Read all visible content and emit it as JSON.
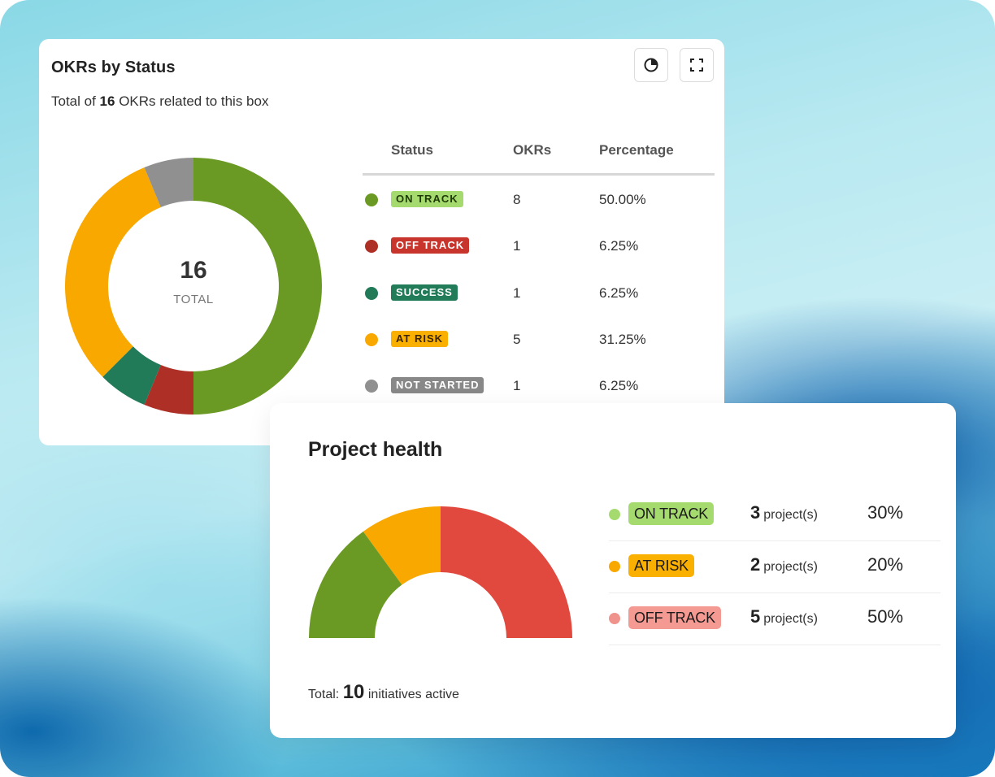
{
  "okr_card": {
    "title": "OKRs by Status",
    "subtitle_prefix": "Total of",
    "subtitle_count": "16",
    "subtitle_suffix": "OKRs related to this box",
    "chart_icon": "pie-chart-icon",
    "expand_icon": "fullscreen-icon",
    "center_value": "16",
    "center_label": "TOTAL",
    "columns": [
      "Status",
      "OKRs",
      "Percentage"
    ],
    "rows": [
      {
        "status": "ON TRACK",
        "okrs": "8",
        "percentage": "50.00%",
        "color": "#6a9a23",
        "badge_bg": "#a5db6e",
        "badge_text": "#1f3a06"
      },
      {
        "status": "OFF TRACK",
        "okrs": "1",
        "percentage": "6.25%",
        "color": "#ad2f26",
        "badge_bg": "#c8352c",
        "badge_text": "#ffffff"
      },
      {
        "status": "SUCCESS",
        "okrs": "1",
        "percentage": "6.25%",
        "color": "#217a58",
        "badge_bg": "#227b59",
        "badge_text": "#ffffff"
      },
      {
        "status": "AT RISK",
        "okrs": "5",
        "percentage": "31.25%",
        "color": "#f9a800",
        "badge_bg": "#fab000",
        "badge_text": "#3a2500"
      },
      {
        "status": "NOT STARTED",
        "okrs": "1",
        "percentage": "6.25%",
        "color": "#909090",
        "badge_bg": "#888888",
        "badge_text": "#ffffff"
      }
    ]
  },
  "chart_data": [
    {
      "type": "pie",
      "title": "OKRs by Status",
      "categories": [
        "ON TRACK",
        "OFF TRACK",
        "SUCCESS",
        "AT RISK",
        "NOT STARTED"
      ],
      "values": [
        8,
        1,
        1,
        5,
        1
      ],
      "colors": [
        "#6a9a23",
        "#ad2f26",
        "#217a58",
        "#f9a800",
        "#909090"
      ]
    },
    {
      "type": "pie",
      "title": "Project health",
      "categories": [
        "OFF TRACK",
        "AT RISK",
        "ON TRACK"
      ],
      "values": [
        5,
        2,
        3
      ],
      "colors": [
        "#e2493e",
        "#f9a800",
        "#6a9a23"
      ]
    }
  ],
  "health_card": {
    "title": "Project health",
    "rows": [
      {
        "status": "ON TRACK",
        "count": "3",
        "unit": "project(s)",
        "percent": "30%",
        "dot": "#a5db6e",
        "badge_bg": "#a5db6e"
      },
      {
        "status": "AT RISK",
        "count": "2",
        "unit": "project(s)",
        "percent": "20%",
        "dot": "#f9a800",
        "badge_bg": "#fab000"
      },
      {
        "status": "OFF TRACK",
        "count": "5",
        "unit": "project(s)",
        "percent": "50%",
        "dot": "#f0938c",
        "badge_bg": "#f59a93"
      }
    ],
    "total_prefix": "Total:",
    "total_value": "10",
    "total_suffix": "initiatives active"
  }
}
